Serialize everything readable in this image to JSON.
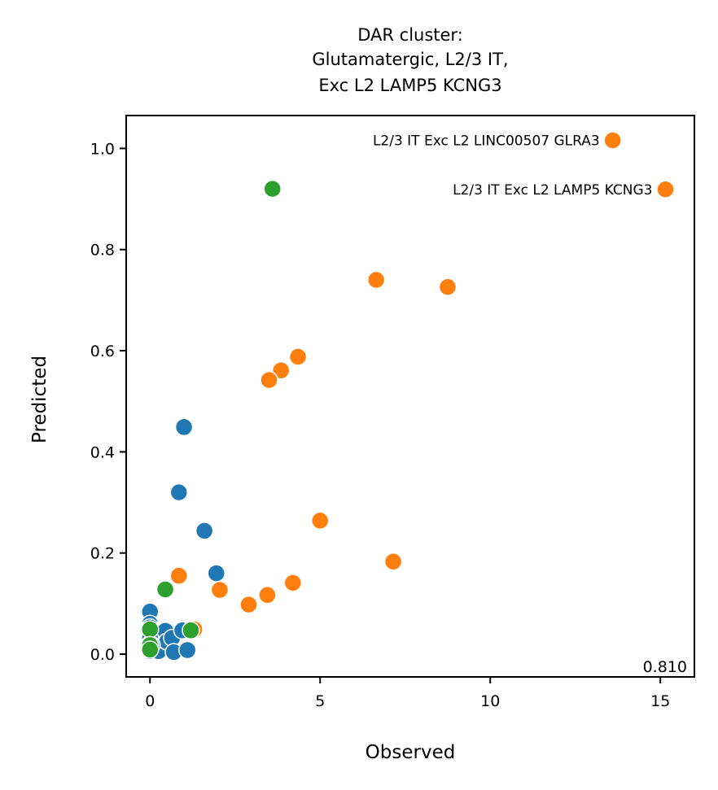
{
  "chart_data": {
    "type": "scatter",
    "title_lines": [
      "DAR cluster:",
      "Glutamatergic, L2/3 IT,",
      "Exc L2 LAMP5 KCNG3"
    ],
    "xlabel": "Observed",
    "ylabel": "Predicted",
    "xlim": [
      -0.7,
      16
    ],
    "ylim": [
      -0.045,
      1.065
    ],
    "x_ticks": [
      0,
      5,
      10,
      15
    ],
    "y_ticks": [
      0.0,
      0.2,
      0.4,
      0.6,
      0.8,
      1.0
    ],
    "x_tick_labels": [
      "0",
      "5",
      "10",
      "15"
    ],
    "y_tick_labels": [
      "0.0",
      "0.2",
      "0.4",
      "0.6",
      "0.8",
      "1.0"
    ],
    "grid": false,
    "corner_value": "0.810",
    "series": [
      {
        "color": "#1f77b4",
        "points": [
          [
            1.0,
            0.449
          ],
          [
            0.85,
            0.32
          ],
          [
            1.6,
            0.244
          ],
          [
            1.95,
            0.16
          ],
          [
            0.0,
            0.084
          ],
          [
            0.0,
            0.06
          ],
          [
            0.0,
            0.053
          ],
          [
            0.0,
            0.045
          ],
          [
            0.0,
            0.032
          ],
          [
            0.0,
            0.02
          ],
          [
            0.0,
            0.012
          ],
          [
            0.0,
            0.006
          ],
          [
            0.25,
            0.006
          ],
          [
            0.45,
            0.046
          ],
          [
            0.5,
            0.025
          ],
          [
            0.65,
            0.032
          ],
          [
            0.7,
            0.004
          ],
          [
            0.95,
            0.047
          ],
          [
            1.1,
            0.008
          ],
          [
            0.05,
            0.018
          ]
        ]
      },
      {
        "color": "#ff7f0e",
        "points": [
          [
            13.6,
            1.016
          ],
          [
            15.15,
            0.919
          ],
          [
            6.65,
            0.74
          ],
          [
            8.75,
            0.726
          ],
          [
            4.35,
            0.588
          ],
          [
            3.85,
            0.561
          ],
          [
            3.5,
            0.542
          ],
          [
            5.0,
            0.264
          ],
          [
            7.15,
            0.183
          ],
          [
            0.85,
            0.155
          ],
          [
            2.05,
            0.127
          ],
          [
            4.2,
            0.141
          ],
          [
            3.45,
            0.117
          ],
          [
            2.9,
            0.098
          ],
          [
            1.3,
            0.049
          ]
        ]
      },
      {
        "color": "#2ca02c",
        "points": [
          [
            3.6,
            0.92
          ],
          [
            0.45,
            0.128
          ],
          [
            1.2,
            0.047
          ],
          [
            0.0,
            0.049
          ],
          [
            0.0,
            0.018
          ],
          [
            0.0,
            0.009
          ]
        ]
      }
    ],
    "annotations": [
      {
        "text": "L2/3 IT Exc L2 LINC00507 GLRA3",
        "x": 13.6,
        "y": 1.016
      },
      {
        "text": "L2/3 IT Exc L2 LAMP5 KCNG3",
        "x": 15.15,
        "y": 0.919
      }
    ]
  }
}
